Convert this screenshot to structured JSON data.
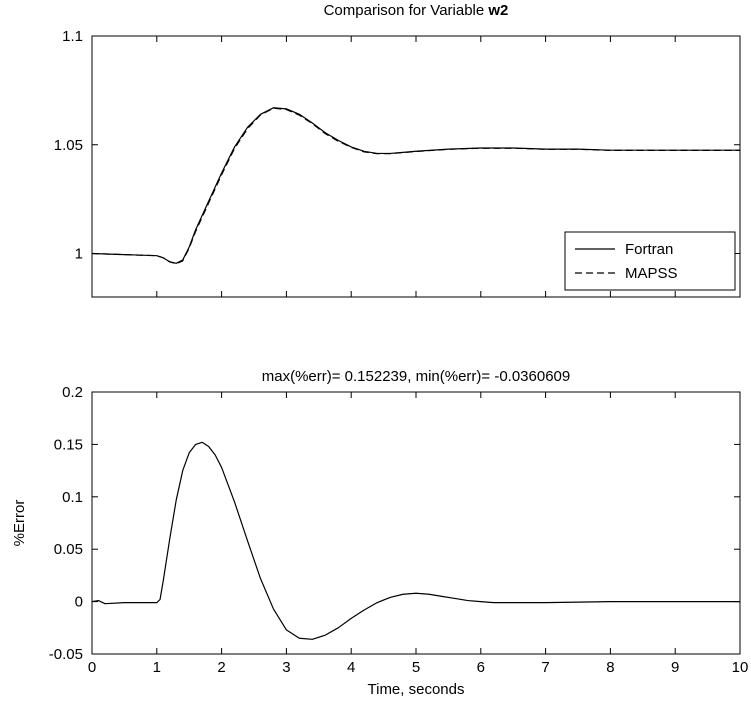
{
  "chart_data": [
    {
      "type": "line",
      "title_prefix": "Comparison for Variable ",
      "title_variable": "w2",
      "xlabel": "",
      "ylabel": "",
      "xlim": [
        0,
        10
      ],
      "ylim": [
        0.98,
        1.1
      ],
      "yticks": [
        "1",
        "1.05",
        "1.1"
      ],
      "yticks_values": [
        1,
        1.05,
        1.1
      ],
      "xticks_values": [
        0,
        1,
        2,
        3,
        4,
        5,
        6,
        7,
        8,
        9,
        10
      ],
      "grid": false,
      "legend_position": "lower-right",
      "series": [
        {
          "name": "Fortran",
          "style": "solid",
          "x": [
            0,
            0.5,
            1.0,
            1.1,
            1.2,
            1.3,
            1.4,
            1.5,
            1.6,
            1.8,
            2.0,
            2.2,
            2.4,
            2.6,
            2.8,
            3.0,
            3.2,
            3.4,
            3.6,
            3.8,
            4.0,
            4.2,
            4.4,
            4.6,
            4.8,
            5.0,
            5.5,
            6.0,
            6.5,
            7.0,
            7.5,
            8.0,
            9.0,
            10.0
          ],
          "y": [
            1.0,
            0.9995,
            0.999,
            0.998,
            0.9962,
            0.9955,
            0.997,
            1.003,
            1.011,
            1.024,
            1.037,
            1.049,
            1.058,
            1.064,
            1.067,
            1.0665,
            1.064,
            1.06,
            1.0555,
            1.052,
            1.049,
            1.047,
            1.046,
            1.046,
            1.0465,
            1.047,
            1.048,
            1.0485,
            1.0485,
            1.048,
            1.048,
            1.0475,
            1.0475,
            1.0475
          ]
        },
        {
          "name": "MAPSS",
          "style": "dashed",
          "x": [
            0,
            0.5,
            1.0,
            1.1,
            1.2,
            1.3,
            1.4,
            1.5,
            1.6,
            1.8,
            2.0,
            2.2,
            2.4,
            2.6,
            2.8,
            3.0,
            3.2,
            3.4,
            3.6,
            3.8,
            4.0,
            4.2,
            4.4,
            4.6,
            4.8,
            5.0,
            5.5,
            6.0,
            6.5,
            7.0,
            7.5,
            8.0,
            9.0,
            10.0
          ],
          "y": [
            1.0,
            0.9995,
            0.999,
            0.998,
            0.9961,
            0.9953,
            0.9966,
            1.0025,
            1.0102,
            1.0232,
            1.0362,
            1.0483,
            1.0574,
            1.0637,
            1.0668,
            1.0662,
            1.0636,
            1.0597,
            1.0551,
            1.0516,
            1.0488,
            1.0467,
            1.0459,
            1.0459,
            1.0464,
            1.0469,
            1.0479,
            1.0484,
            1.0484,
            1.0479,
            1.0479,
            1.0474,
            1.0474,
            1.0474
          ]
        }
      ]
    },
    {
      "type": "line",
      "title": "max(%err)= 0.152239, min(%err)= -0.0360609",
      "xlabel": "Time, seconds",
      "ylabel": "%Error",
      "xlim": [
        0,
        10
      ],
      "ylim": [
        -0.05,
        0.2
      ],
      "xticks": [
        "0",
        "1",
        "2",
        "3",
        "4",
        "5",
        "6",
        "7",
        "8",
        "9",
        "10"
      ],
      "xticks_values": [
        0,
        1,
        2,
        3,
        4,
        5,
        6,
        7,
        8,
        9,
        10
      ],
      "yticks": [
        "-0.05",
        "0",
        "0.05",
        "0.1",
        "0.15",
        "0.2"
      ],
      "yticks_values": [
        -0.05,
        0,
        0.05,
        0.1,
        0.15,
        0.2
      ],
      "grid": false,
      "series": [
        {
          "style": "solid",
          "x": [
            0,
            0.1,
            0.2,
            0.5,
            1.0,
            1.05,
            1.1,
            1.2,
            1.3,
            1.4,
            1.5,
            1.6,
            1.7,
            1.8,
            1.9,
            2.0,
            2.2,
            2.4,
            2.6,
            2.8,
            3.0,
            3.2,
            3.4,
            3.6,
            3.8,
            4.0,
            4.2,
            4.4,
            4.6,
            4.8,
            5.0,
            5.2,
            5.4,
            5.6,
            5.8,
            6.0,
            6.2,
            6.4,
            7.0,
            8.0,
            9.0,
            10.0
          ],
          "y": [
            0.0,
            0.001,
            -0.002,
            -0.001,
            -0.001,
            0.002,
            0.02,
            0.06,
            0.097,
            0.125,
            0.142,
            0.15,
            0.152,
            0.148,
            0.14,
            0.128,
            0.095,
            0.058,
            0.022,
            -0.007,
            -0.027,
            -0.035,
            -0.036,
            -0.032,
            -0.025,
            -0.016,
            -0.008,
            -0.001,
            0.004,
            0.007,
            0.008,
            0.007,
            0.005,
            0.003,
            0.001,
            0.0,
            -0.001,
            -0.001,
            -0.001,
            0.0,
            0.0,
            0.0
          ]
        }
      ]
    }
  ]
}
